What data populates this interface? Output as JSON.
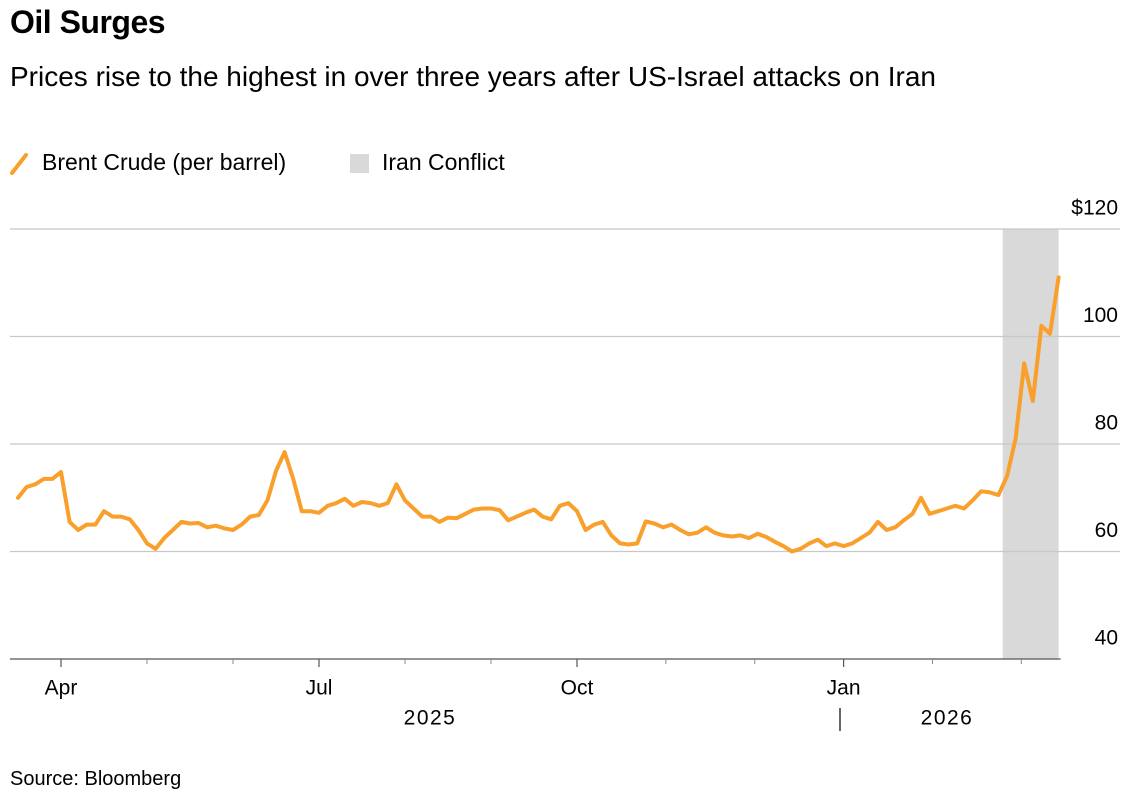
{
  "chart_data": {
    "type": "line",
    "title": "Oil Surges",
    "subtitle": "Prices rise to the highest in over three years after US-Israel attacks on Iran",
    "source": "Source: Bloomberg",
    "categories": [
      null,
      null,
      null,
      null,
      null,
      "Apr",
      null,
      null,
      null,
      null,
      null,
      null,
      null,
      null,
      null,
      null,
      null,
      null,
      null,
      null,
      null,
      null,
      null,
      null,
      null,
      null,
      null,
      null,
      null,
      null,
      null,
      null,
      null,
      null,
      null,
      "Jul",
      null,
      null,
      null,
      null,
      null,
      null,
      null,
      null,
      null,
      null,
      null,
      null,
      null,
      null,
      null,
      null,
      null,
      null,
      null,
      null,
      null,
      null,
      null,
      null,
      null,
      null,
      null,
      null,
      null,
      "Oct",
      null,
      null,
      null,
      null,
      null,
      null,
      null,
      null,
      null,
      null,
      null,
      null,
      null,
      null,
      null,
      null,
      null,
      null,
      null,
      null,
      null,
      null,
      null,
      null,
      null,
      null,
      null,
      null,
      null,
      null,
      "Jan",
      null,
      null,
      null,
      null,
      null,
      null,
      null,
      null,
      null,
      null,
      null,
      null,
      null,
      null,
      null,
      null,
      null,
      null,
      null,
      null,
      null,
      null,
      null,
      null,
      null
    ],
    "year_labels": [
      "2025",
      "2026"
    ],
    "series": [
      {
        "name": "Brent Crude (per barrel)",
        "color": "#f99f2b",
        "values": [
          70,
          72,
          72.5,
          73.5,
          73.5,
          74.8,
          65.5,
          64,
          65,
          65,
          67.5,
          66.5,
          66.5,
          66,
          64,
          61.5,
          60.5,
          62.5,
          64,
          65.5,
          65.2,
          65.3,
          64.5,
          64.8,
          64.3,
          64,
          65,
          66.5,
          66.8,
          69.5,
          75,
          78.5,
          73.5,
          67.5,
          67.5,
          67.2,
          68.5,
          69,
          69.8,
          68.5,
          69.2,
          69,
          68.5,
          69,
          72.5,
          69.5,
          68,
          66.5,
          66.5,
          65.5,
          66.3,
          66.2,
          67,
          67.8,
          68,
          68,
          67.7,
          65.8,
          66.5,
          67.2,
          67.8,
          66.5,
          66,
          68.5,
          69,
          67.5,
          64,
          65,
          65.5,
          63,
          61.5,
          61.3,
          61.5,
          65.6,
          65.2,
          64.5,
          65,
          64,
          63.2,
          63.5,
          64.5,
          63.5,
          63,
          62.8,
          63,
          62.5,
          63.3,
          62.7,
          61.8,
          61,
          60,
          60.5,
          61.5,
          62.2,
          61,
          61.5,
          61,
          61.5,
          62.5,
          63.5,
          65.5,
          64,
          64.5,
          65.8,
          67,
          70,
          67,
          67.5,
          68,
          68.5,
          68,
          69.5,
          71.2,
          71,
          70.5,
          74,
          81,
          95,
          88,
          102,
          100.5,
          111
        ]
      }
    ],
    "highlight": {
      "name": "Iran Conflict",
      "color": "#d9d9d9",
      "start": 115
    },
    "ylim": [
      40,
      120
    ],
    "yticks": [
      40,
      60,
      80,
      100,
      {
        "value": 120,
        "label": "$120"
      }
    ],
    "grid": true
  }
}
